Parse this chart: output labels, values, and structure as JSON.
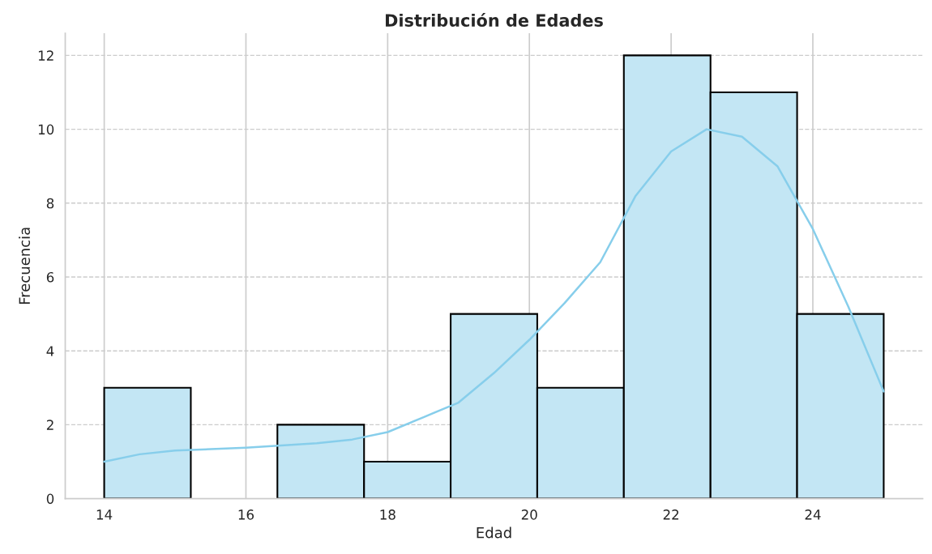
{
  "chart_data": {
    "type": "histogram",
    "title": "Distribución de Edades",
    "xlabel": "Edad",
    "ylabel": "Frecuencia",
    "bins": [
      14,
      15.222,
      16.444,
      17.667,
      18.889,
      20.111,
      21.333,
      22.556,
      23.778,
      25
    ],
    "series": [
      {
        "color": "#c3e6f4",
        "values": [
          3,
          0,
          2,
          1,
          5,
          3,
          12,
          11,
          5
        ]
      },
      {
        "type": "line",
        "color": "#87ceeb",
        "x": [
          14,
          14.5,
          15,
          16,
          17,
          17.5,
          18,
          18.5,
          19,
          19.5,
          20,
          20.5,
          21,
          21.5,
          22,
          22.5,
          23,
          23.5,
          24,
          24.5,
          25
        ],
        "values": [
          1.0,
          1.2,
          1.3,
          1.38,
          1.5,
          1.6,
          1.8,
          2.2,
          2.6,
          3.4,
          4.3,
          5.3,
          6.4,
          8.2,
          9.4,
          10.0,
          9.8,
          9.0,
          7.3,
          5.2,
          2.9
        ]
      }
    ],
    "xlim": [
      13.45,
      25.55
    ],
    "ylim": [
      0,
      12.6
    ],
    "xticks": [
      14,
      16,
      18,
      20,
      22,
      24
    ],
    "yticks": [
      0,
      2,
      4,
      6,
      8,
      10,
      12
    ],
    "grid": true
  }
}
